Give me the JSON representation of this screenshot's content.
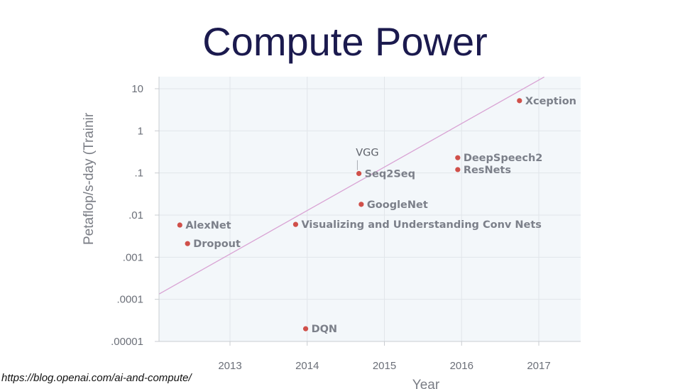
{
  "title": "Compute Power",
  "source": "https://blog.openai.com/ai-and-compute/",
  "colors": {
    "title": "#1b1a4e",
    "plot_background": "#f3f7fa",
    "point": "#d0504a",
    "trend_line": "#d9a3d4",
    "label": "#7c808a"
  },
  "chart_data": {
    "type": "scatter",
    "title": "Compute Power",
    "xlabel": "Year",
    "ylabel": "Petaflop/s-day (Trainir",
    "yscale": "log",
    "xlim": [
      2012.0,
      2017.55
    ],
    "ylim": [
      1e-05,
      20
    ],
    "x_ticks": [
      {
        "value": 2013,
        "label": "2013"
      },
      {
        "value": 2014,
        "label": "2014"
      },
      {
        "value": 2015,
        "label": "2015"
      },
      {
        "value": 2016,
        "label": "2016"
      },
      {
        "value": 2017,
        "label": "2017"
      }
    ],
    "y_ticks": [
      {
        "value": 10,
        "label": "10"
      },
      {
        "value": 1,
        "label": "1"
      },
      {
        "value": 0.1,
        "label": ".1"
      },
      {
        "value": 0.01,
        "label": ".01"
      },
      {
        "value": 0.001,
        "label": ".001"
      },
      {
        "value": 0.0001,
        "label": ".0001"
      },
      {
        "value": 1e-05,
        "label": ".00001"
      }
    ],
    "points": [
      {
        "name": "AlexNet",
        "x": 2012.35,
        "y": 0.0058
      },
      {
        "name": "Dropout",
        "x": 2012.45,
        "y": 0.0021
      },
      {
        "name": "Visualizing and Understanding Conv Nets",
        "x": 2013.85,
        "y": 0.006
      },
      {
        "name": "DQN",
        "x": 2013.98,
        "y": 2e-05
      },
      {
        "name": "VGG",
        "x": 2014.65,
        "y": 0.1,
        "annotation_above": true
      },
      {
        "name": "Seq2Seq",
        "x": 2014.67,
        "y": 0.097
      },
      {
        "name": "GoogleNet",
        "x": 2014.7,
        "y": 0.018
      },
      {
        "name": "DeepSpeech2",
        "x": 2015.95,
        "y": 0.23
      },
      {
        "name": "ResNets",
        "x": 2015.95,
        "y": 0.12
      },
      {
        "name": "Xception",
        "x": 2016.75,
        "y": 5.2
      }
    ],
    "trend_line": {
      "x": [
        2012.0,
        2017.07
      ],
      "y": [
        0.00011,
        19.0
      ]
    }
  }
}
